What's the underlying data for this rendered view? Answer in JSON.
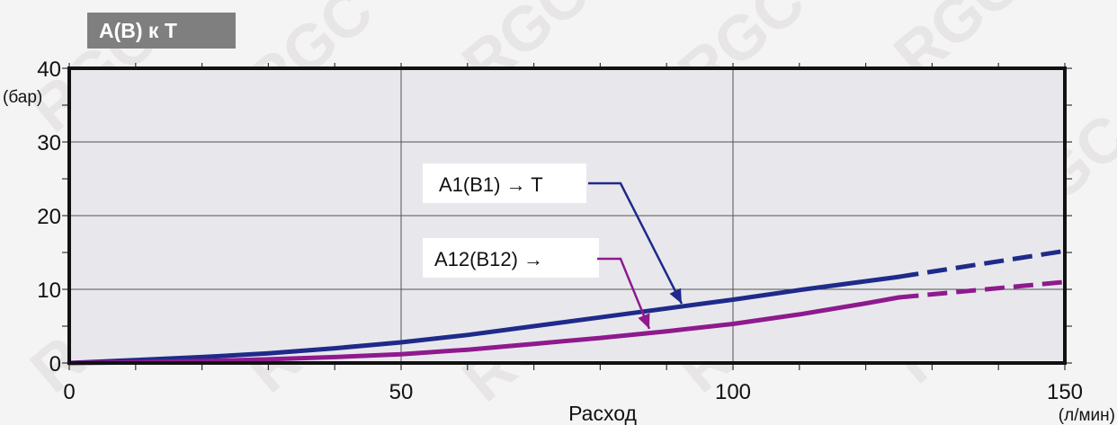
{
  "chart_data": {
    "type": "line",
    "title": "A(B) к T",
    "xlabel": "Расход",
    "x_unit": "(л/мин)",
    "y_unit": "(бар)",
    "xlim": [
      0,
      150
    ],
    "ylim": [
      0,
      40
    ],
    "x_ticks": [
      "0",
      "50",
      "100",
      "150"
    ],
    "y_ticks": [
      "0",
      "10",
      "20",
      "30",
      "40"
    ],
    "grid": true,
    "colors": {
      "series1": "#1f2a8a",
      "series2": "#8e1a8e",
      "title_bg": "#7f7f7f",
      "plot_bg": "#e8e8ec"
    },
    "series": [
      {
        "name": "A1(B1) → T",
        "annotation": "A1(B1) → T",
        "x": [
          0,
          10,
          20,
          30,
          40,
          50,
          60,
          70,
          80,
          90,
          100,
          110,
          120,
          125
        ],
        "y": [
          0,
          0.4,
          0.8,
          1.3,
          2.0,
          2.8,
          3.8,
          5.0,
          6.2,
          7.4,
          8.6,
          9.9,
          11.1,
          11.7
        ],
        "extrapolated": {
          "x": [
            125,
            150
          ],
          "y": [
            11.7,
            15.2
          ]
        }
      },
      {
        "name": "A12(B12) →",
        "annotation": "A12(B12) →",
        "x": [
          0,
          10,
          20,
          30,
          40,
          50,
          60,
          70,
          80,
          90,
          100,
          110,
          120,
          125
        ],
        "y": [
          0,
          0.1,
          0.25,
          0.5,
          0.8,
          1.2,
          1.8,
          2.6,
          3.4,
          4.3,
          5.3,
          6.6,
          8.1,
          8.9
        ],
        "extrapolated": {
          "x": [
            125,
            150
          ],
          "y": [
            8.9,
            11.0
          ]
        }
      }
    ],
    "watermark": "RGC"
  }
}
